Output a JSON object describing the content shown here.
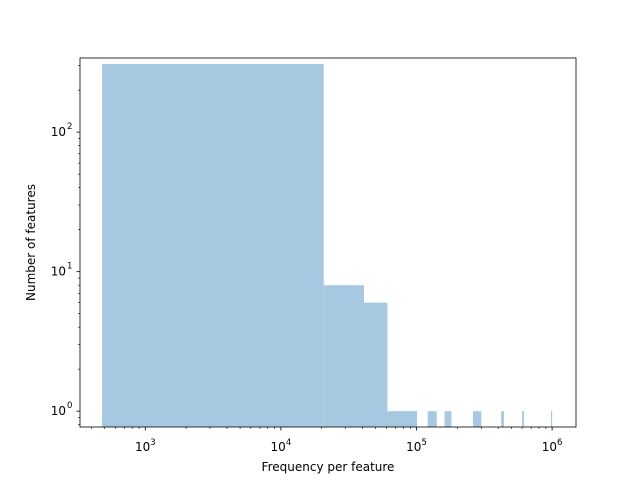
{
  "chart_data": {
    "type": "bar",
    "title": "",
    "xlabel": "Frequency per feature",
    "ylabel": "Number of features",
    "x_scale": "log",
    "y_scale": "log",
    "xlim": [
      330,
      1500000
    ],
    "ylim": [
      0.77,
      340
    ],
    "bar_color": "#a6c8e0",
    "x_ticks": [
      {
        "value": 1000,
        "base": "10",
        "exp": "3"
      },
      {
        "value": 10000,
        "base": "10",
        "exp": "4"
      },
      {
        "value": 100000,
        "base": "10",
        "exp": "5"
      },
      {
        "value": 1000000,
        "base": "10",
        "exp": "6"
      }
    ],
    "y_ticks": [
      {
        "value": 1,
        "base": "10",
        "exp": "0"
      },
      {
        "value": 10,
        "base": "10",
        "exp": "1"
      },
      {
        "value": 100,
        "base": "10",
        "exp": "2"
      }
    ],
    "bins": [
      {
        "x0": 480,
        "x1": 20700,
        "count": 308
      },
      {
        "x0": 20700,
        "x1": 41000,
        "count": 8
      },
      {
        "x0": 41000,
        "x1": 61000,
        "count": 6
      },
      {
        "x0": 61000,
        "x1": 101000,
        "count": 1
      },
      {
        "x0": 121000,
        "x1": 141000,
        "count": 1
      },
      {
        "x0": 161000,
        "x1": 181000,
        "count": 1
      },
      {
        "x0": 261000,
        "x1": 301000,
        "count": 1
      },
      {
        "x0": 421000,
        "x1": 441000,
        "count": 1
      },
      {
        "x0": 601000,
        "x1": 621000,
        "count": 1
      },
      {
        "x0": 981000,
        "x1": 1000000,
        "count": 1
      }
    ]
  }
}
